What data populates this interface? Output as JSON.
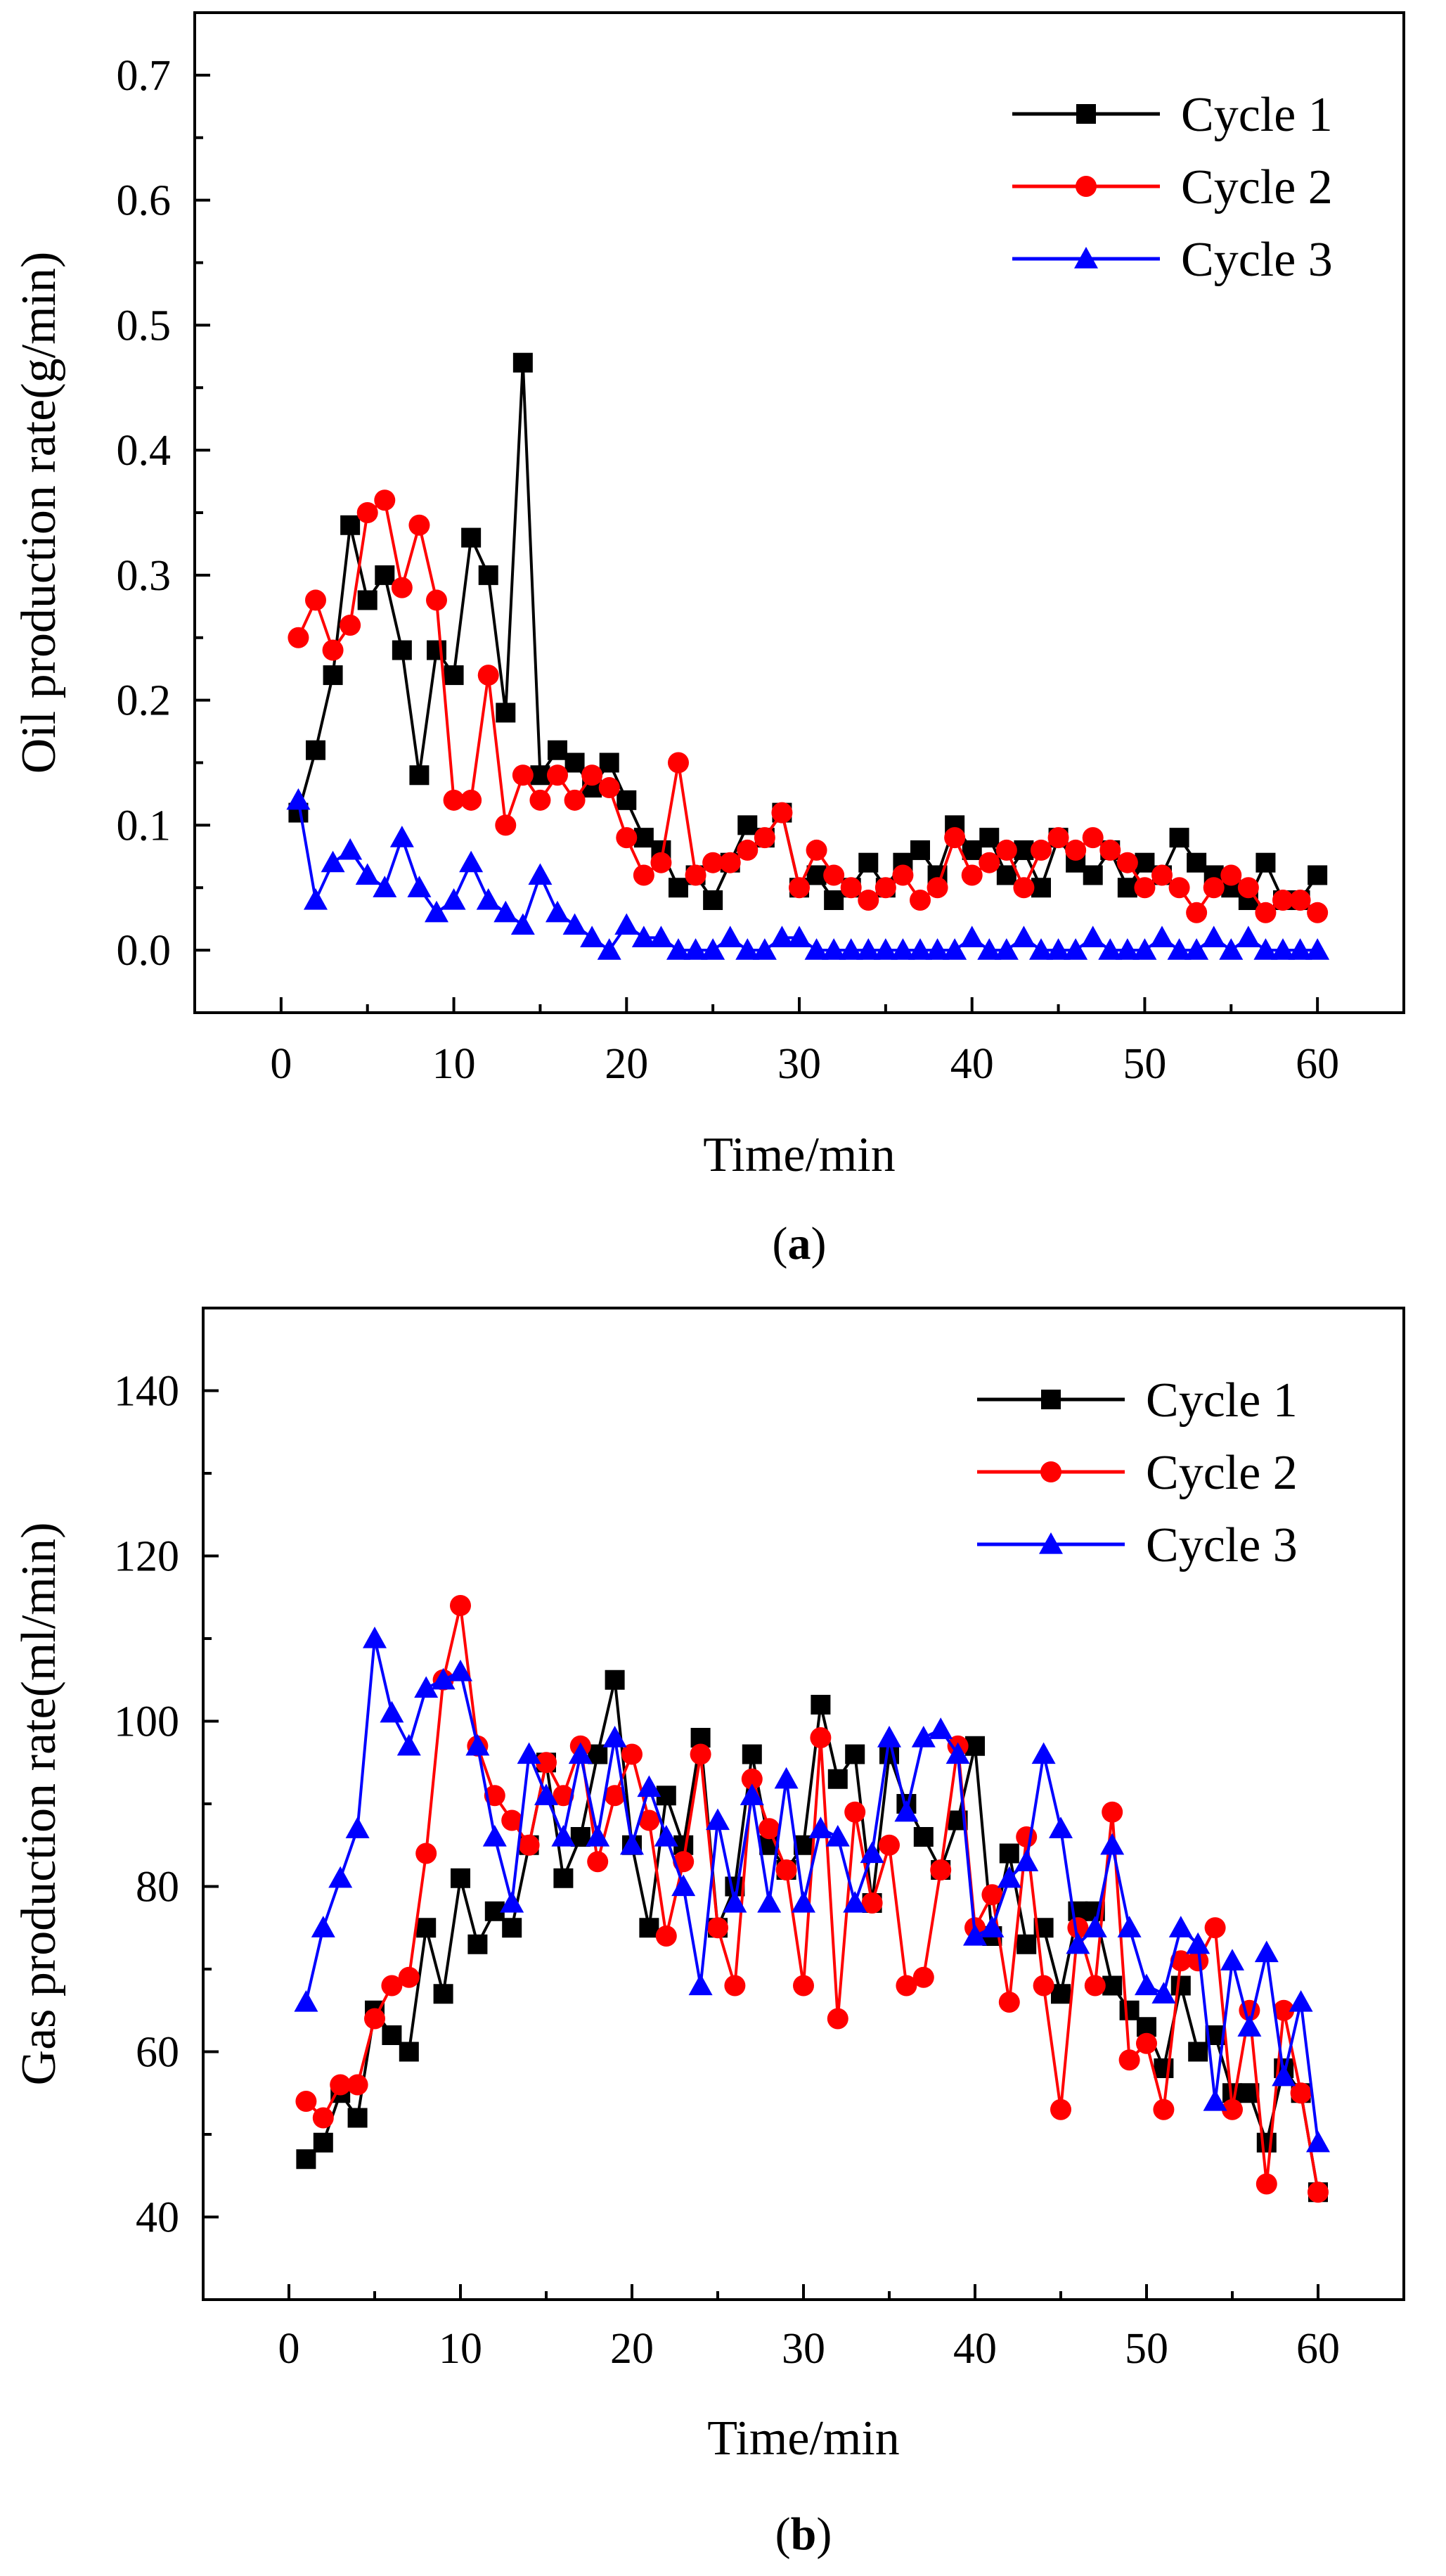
{
  "colors": {
    "cycle1": "#000000",
    "cycle2": "#ff0000",
    "cycle3": "#0000ff"
  },
  "chart_data": [
    {
      "type": "line",
      "panel_label_open": "(",
      "panel_label": "a",
      "panel_label_close": ")",
      "xlabel": "Time/min",
      "ylabel": "Oil production rate(g/min)",
      "xlim": [
        -5,
        65
      ],
      "ylim": [
        -0.05,
        0.75
      ],
      "xticks": [
        0,
        10,
        20,
        30,
        40,
        50,
        60
      ],
      "yticks": [
        0.0,
        0.1,
        0.2,
        0.3,
        0.4,
        0.5,
        0.6,
        0.7
      ],
      "ytick_format": "fixed1",
      "legend_position": "top-right",
      "x": [
        1,
        2,
        3,
        4,
        5,
        6,
        7,
        8,
        9,
        10,
        11,
        12,
        13,
        14,
        15,
        16,
        17,
        18,
        19,
        20,
        21,
        22,
        23,
        24,
        25,
        26,
        27,
        28,
        29,
        30,
        31,
        32,
        33,
        34,
        35,
        36,
        37,
        38,
        39,
        40,
        41,
        42,
        43,
        44,
        45,
        46,
        47,
        48,
        49,
        50,
        51,
        52,
        53,
        54,
        55,
        56,
        57,
        58,
        59,
        60
      ],
      "series": [
        {
          "name": "Cycle 1",
          "marker": "square",
          "color_key": "cycle1",
          "values": [
            0.11,
            0.16,
            0.22,
            0.34,
            0.28,
            0.3,
            0.24,
            0.14,
            0.24,
            0.22,
            0.33,
            0.3,
            0.19,
            0.47,
            0.14,
            0.16,
            0.15,
            0.13,
            0.15,
            0.12,
            0.09,
            0.08,
            0.05,
            0.06,
            0.04,
            0.07,
            0.1,
            0.09,
            0.11,
            0.05,
            0.06,
            0.04,
            0.05,
            0.07,
            0.05,
            0.07,
            0.08,
            0.06,
            0.1,
            0.08,
            0.09,
            0.06,
            0.08,
            0.05,
            0.09,
            0.07,
            0.06,
            0.08,
            0.05,
            0.07,
            0.06,
            0.09,
            0.07,
            0.06,
            0.05,
            0.04,
            0.07,
            0.04,
            0.04,
            0.06
          ]
        },
        {
          "name": "Cycle 2",
          "marker": "circle",
          "color_key": "cycle2",
          "values": [
            0.25,
            0.28,
            0.24,
            0.26,
            0.35,
            0.36,
            0.29,
            0.34,
            0.28,
            0.12,
            0.12,
            0.22,
            0.1,
            0.14,
            0.12,
            0.14,
            0.12,
            0.14,
            0.13,
            0.09,
            0.06,
            0.07,
            0.15,
            0.06,
            0.07,
            0.07,
            0.08,
            0.09,
            0.11,
            0.05,
            0.08,
            0.06,
            0.05,
            0.04,
            0.05,
            0.06,
            0.04,
            0.05,
            0.09,
            0.06,
            0.07,
            0.08,
            0.05,
            0.08,
            0.09,
            0.08,
            0.09,
            0.08,
            0.07,
            0.05,
            0.06,
            0.05,
            0.03,
            0.05,
            0.06,
            0.05,
            0.03,
            0.04,
            0.04,
            0.03
          ]
        },
        {
          "name": "Cycle 3",
          "marker": "triangle",
          "color_key": "cycle3",
          "values": [
            0.12,
            0.04,
            0.07,
            0.08,
            0.06,
            0.05,
            0.09,
            0.05,
            0.03,
            0.04,
            0.07,
            0.04,
            0.03,
            0.02,
            0.06,
            0.03,
            0.02,
            0.01,
            0.0,
            0.02,
            0.01,
            0.01,
            0.0,
            0.0,
            0.0,
            0.01,
            0.0,
            0.0,
            0.01,
            0.01,
            0.0,
            0.0,
            0.0,
            0.0,
            0.0,
            0.0,
            0.0,
            0.0,
            0.0,
            0.01,
            0.0,
            0.0,
            0.01,
            0.0,
            0.0,
            0.0,
            0.01,
            0.0,
            0.0,
            0.0,
            0.01,
            0.0,
            0.0,
            0.01,
            0.0,
            0.01,
            0.0,
            0.0,
            0.0,
            0.0
          ]
        }
      ]
    },
    {
      "type": "line",
      "panel_label_open": "(",
      "panel_label": "b",
      "panel_label_close": ")",
      "xlabel": "Time/min",
      "ylabel": "Gas production rate(ml/min)",
      "xlim": [
        -5,
        65
      ],
      "ylim": [
        30,
        150
      ],
      "xticks": [
        0,
        10,
        20,
        30,
        40,
        50,
        60
      ],
      "yticks": [
        40,
        60,
        80,
        100,
        120,
        140
      ],
      "ytick_format": "integer",
      "legend_position": "top-right",
      "x": [
        1,
        2,
        3,
        4,
        5,
        6,
        7,
        8,
        9,
        10,
        11,
        12,
        13,
        14,
        15,
        16,
        17,
        18,
        19,
        20,
        21,
        22,
        23,
        24,
        25,
        26,
        27,
        28,
        29,
        30,
        31,
        32,
        33,
        34,
        35,
        36,
        37,
        38,
        39,
        40,
        41,
        42,
        43,
        44,
        45,
        46,
        47,
        48,
        49,
        50,
        51,
        52,
        53,
        54,
        55,
        56,
        57,
        58,
        59,
        60
      ],
      "series": [
        {
          "name": "Cycle 1",
          "marker": "square",
          "color_key": "cycle1",
          "values": [
            47,
            49,
            55,
            52,
            65,
            62,
            60,
            75,
            67,
            81,
            73,
            77,
            75,
            85,
            95,
            81,
            86,
            96,
            105,
            85,
            75,
            91,
            85,
            98,
            75,
            80,
            96,
            85,
            82,
            85,
            102,
            93,
            96,
            78,
            96,
            90,
            86,
            82,
            88,
            97,
            74,
            84,
            73,
            75,
            67,
            77,
            77,
            68,
            65,
            63,
            58,
            68,
            60,
            62,
            55,
            55,
            49,
            58,
            55,
            43
          ]
        },
        {
          "name": "Cycle 2",
          "marker": "circle",
          "color_key": "cycle2",
          "values": [
            54,
            52,
            56,
            56,
            64,
            68,
            69,
            84,
            105,
            114,
            97,
            91,
            88,
            85,
            95,
            91,
            97,
            83,
            91,
            96,
            88,
            74,
            83,
            96,
            75,
            68,
            93,
            87,
            82,
            68,
            98,
            64,
            89,
            78,
            85,
            68,
            69,
            82,
            97,
            75,
            79,
            66,
            86,
            68,
            53,
            75,
            68,
            89,
            59,
            61,
            53,
            71,
            71,
            75,
            53,
            65,
            44,
            65,
            55,
            43
          ]
        },
        {
          "name": "Cycle 3",
          "marker": "triangle",
          "color_key": "cycle3",
          "values": [
            66,
            75,
            81,
            87,
            110,
            101,
            97,
            104,
            105,
            106,
            97,
            86,
            78,
            96,
            91,
            86,
            96,
            86,
            98,
            85,
            92,
            86,
            80,
            68,
            88,
            78,
            91,
            78,
            93,
            78,
            87,
            86,
            78,
            84,
            98,
            89,
            98,
            99,
            96,
            74,
            75,
            81,
            83,
            96,
            87,
            73,
            75,
            85,
            75,
            68,
            67,
            75,
            73,
            54,
            71,
            63,
            72,
            57,
            66,
            49
          ]
        }
      ]
    }
  ]
}
